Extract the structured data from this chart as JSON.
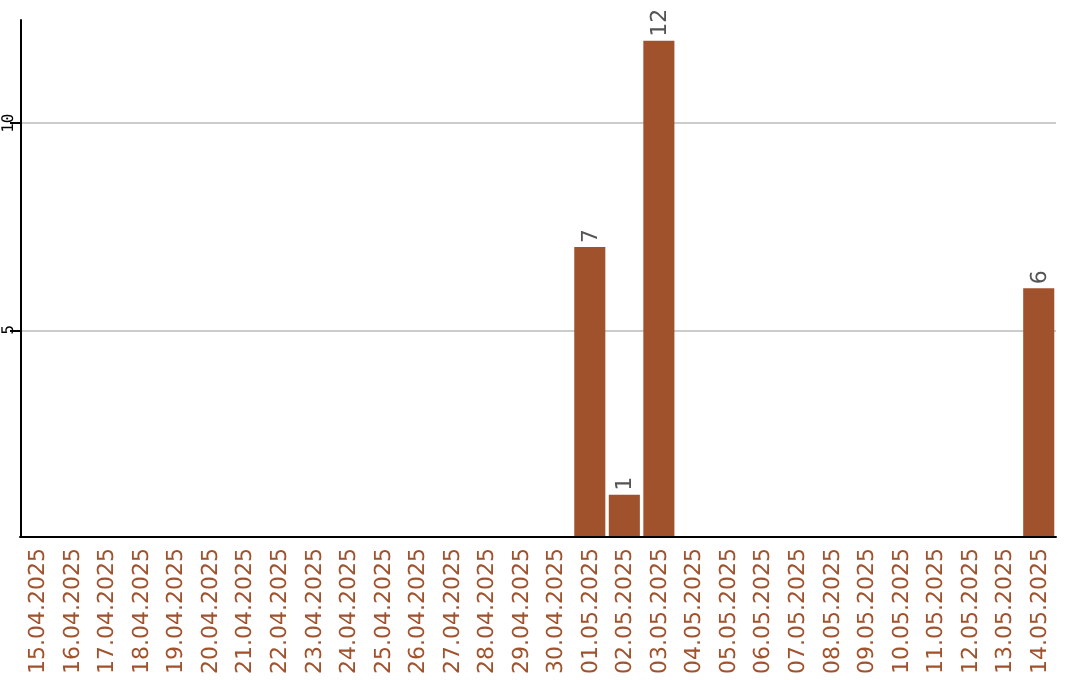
{
  "chart_data": {
    "type": "bar",
    "categories": [
      "15.04.2025",
      "16.04.2025",
      "17.04.2025",
      "18.04.2025",
      "19.04.2025",
      "20.04.2025",
      "21.04.2025",
      "22.04.2025",
      "23.04.2025",
      "24.04.2025",
      "25.04.2025",
      "26.04.2025",
      "27.04.2025",
      "28.04.2025",
      "29.04.2025",
      "30.04.2025",
      "01.05.2025",
      "02.05.2025",
      "03.05.2025",
      "04.05.2025",
      "05.05.2025",
      "06.05.2025",
      "07.05.2025",
      "08.05.2025",
      "09.05.2025",
      "10.05.2025",
      "11.05.2025",
      "12.05.2025",
      "13.05.2025",
      "14.05.2025"
    ],
    "values": [
      0,
      0,
      0,
      0,
      0,
      0,
      0,
      0,
      0,
      0,
      0,
      0,
      0,
      0,
      0,
      0,
      7,
      1,
      12,
      0,
      0,
      0,
      0,
      0,
      0,
      0,
      0,
      0,
      0,
      6
    ],
    "value_labels": [
      null,
      null,
      null,
      null,
      null,
      null,
      null,
      null,
      null,
      null,
      null,
      null,
      null,
      null,
      null,
      null,
      "7",
      "1",
      "12",
      null,
      null,
      null,
      null,
      null,
      null,
      null,
      null,
      null,
      null,
      "6"
    ],
    "color": "#a0522d",
    "ylim": [
      0,
      12.5
    ],
    "yticks": [
      5,
      10
    ],
    "grid": "y"
  }
}
